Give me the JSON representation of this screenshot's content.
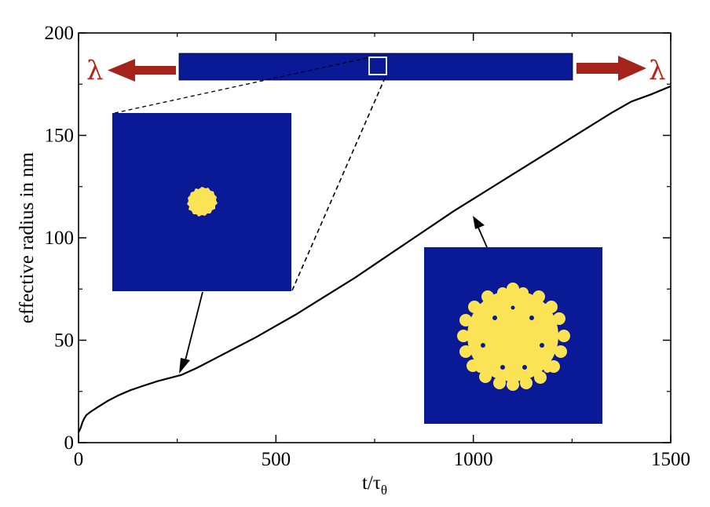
{
  "chart_data": {
    "type": "line",
    "xlabel": "t/τ",
    "xlabel_subscript": "θ",
    "ylabel": "effective radius in nm",
    "xlim": [
      0,
      1500
    ],
    "ylim": [
      0,
      200
    ],
    "x_ticks": [
      0,
      500,
      1000,
      1500
    ],
    "y_ticks": [
      0,
      50,
      100,
      150,
      200
    ],
    "grid": false,
    "series": [
      {
        "x": [
          0,
          5,
          10,
          15,
          20,
          30,
          50,
          75,
          100,
          130,
          160,
          200,
          240,
          260,
          300,
          350,
          400,
          450,
          500,
          550,
          600,
          650,
          700,
          750,
          800,
          850,
          900,
          950,
          1000,
          1050,
          1100,
          1150,
          1200,
          1250,
          1300,
          1350,
          1400,
          1450,
          1500
        ],
        "y": [
          5,
          7,
          10,
          12,
          13.5,
          15,
          17.5,
          20.5,
          23,
          25.5,
          27.5,
          30,
          32,
          33,
          36.5,
          41.5,
          46.5,
          51.5,
          57,
          62.5,
          68.5,
          74.5,
          80.5,
          87,
          93.5,
          100,
          106.5,
          113,
          119,
          125,
          131,
          137,
          143,
          149,
          155,
          161,
          166.5,
          170,
          174
        ]
      }
    ],
    "annotations": {
      "lambda_left": "λ",
      "lambda_right": "λ"
    },
    "colors": {
      "domain": "#0a1a96",
      "particle": "#fae455",
      "arrow": "#a4241c",
      "line": "#000000"
    }
  }
}
